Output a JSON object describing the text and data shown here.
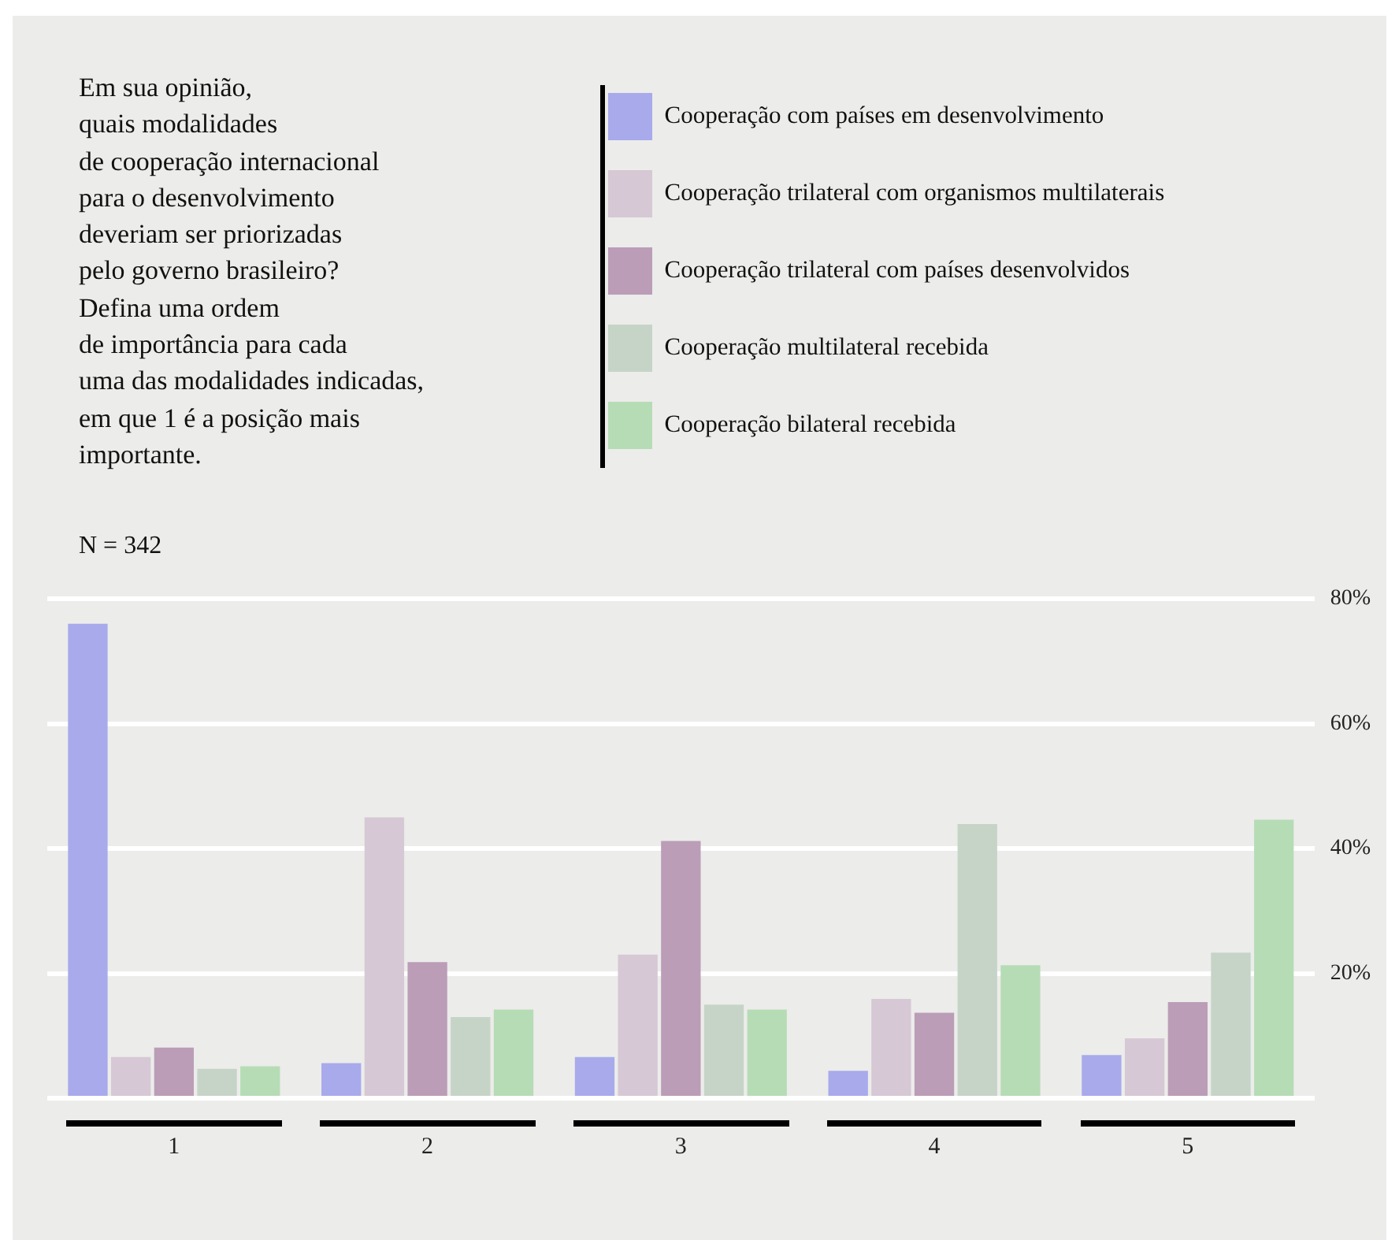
{
  "chart_data": {
    "type": "bar",
    "title": "Em sua opinião,\nquais modalidades\nde cooperação internacional\npara o desenvolvimento\ndeveriam ser priorizadas\npelo governo brasileiro?\nDefina uma ordem\nde importância para cada\numa das modalidades indicadas,\nem que 1 é a posição mais\nimportante.",
    "subtitle": "N = 342",
    "categories": [
      "1",
      "2",
      "3",
      "4",
      "5"
    ],
    "series": [
      {
        "name": "Cooperação com países em desenvolvimento",
        "color": "#a8aaec",
        "values": [
          76,
          5.6,
          6.6,
          4.4,
          6.9
        ]
      },
      {
        "name": "Cooperação trilateral com organismos multilaterais",
        "color": "#d6c8d4",
        "values": [
          6.6,
          45,
          23,
          15.9,
          9.6
        ]
      },
      {
        "name": "Cooperação trilateral com países desenvolvidos",
        "color": "#bb9db7",
        "values": [
          8.1,
          21.8,
          41.2,
          13.7,
          15.4
        ]
      },
      {
        "name": "Cooperação multilateral recebida",
        "color": "#c6d4c8",
        "values": [
          4.7,
          13,
          15,
          43.9,
          23.3
        ]
      },
      {
        "name": "Cooperação bilateral recebida",
        "color": "#b6dcb6",
        "values": [
          5.1,
          14.2,
          14.2,
          21.3,
          44.6
        ]
      }
    ],
    "ylim": [
      0,
      80
    ],
    "yticks": [
      {
        "value": 0,
        "label": null
      },
      {
        "value": 20,
        "label": "20%"
      },
      {
        "value": 40,
        "label": "40%"
      },
      {
        "value": 60,
        "label": "60%"
      },
      {
        "value": 80,
        "label": "80%"
      }
    ],
    "grid": "y",
    "legend": "top"
  }
}
